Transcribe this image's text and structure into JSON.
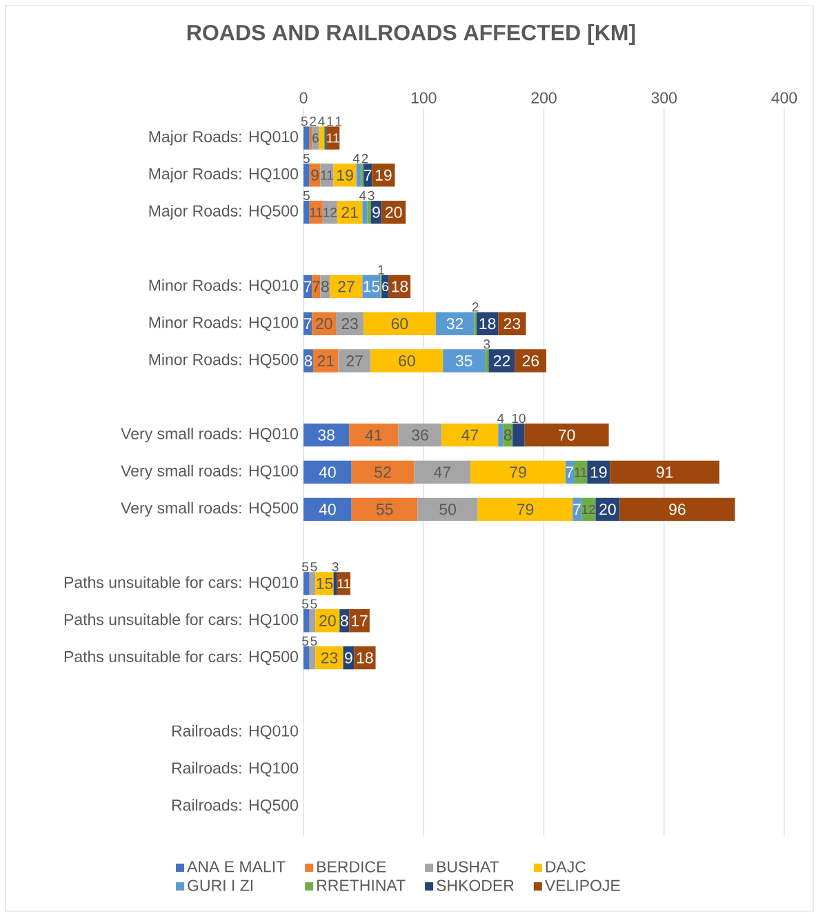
{
  "chart_data": {
    "type": "bar",
    "orientation": "horizontal",
    "stacked": true,
    "title": "ROADS AND RAILROADS AFFECTED [KM]",
    "categories": [
      "Major Roads: HQ010",
      "Major Roads: HQ100",
      "Major Roads: HQ500",
      null,
      "Minor Roads: HQ010",
      "Minor Roads: HQ100",
      "Minor Roads: HQ500",
      null,
      "Very small roads: HQ010",
      "Very small roads: HQ100",
      "Very small roads: HQ500",
      null,
      "Paths unsuitable for cars: HQ010",
      "Paths unsuitable for cars: HQ100",
      "Paths unsuitable for cars: HQ500",
      null,
      "Railroads: HQ010",
      "Railroads: HQ100",
      "Railroads: HQ500"
    ],
    "series": [
      {
        "name": "ANA E MALIT",
        "color": "#4472c4",
        "values": [
          5,
          5,
          5,
          null,
          7,
          7,
          8,
          null,
          38,
          40,
          40,
          null,
          5,
          5,
          5,
          null,
          null,
          null,
          null
        ]
      },
      {
        "name": "BERDICE",
        "color": "#ed7d31",
        "values": [
          2,
          9,
          11,
          null,
          7,
          20,
          21,
          null,
          41,
          52,
          55,
          null,
          null,
          null,
          null,
          null,
          null,
          null,
          null
        ]
      },
      {
        "name": "BUSHAT",
        "color": "#a5a5a5",
        "values": [
          6,
          11,
          12,
          null,
          8,
          23,
          27,
          null,
          36,
          47,
          50,
          null,
          5,
          5,
          5,
          null,
          null,
          null,
          null
        ]
      },
      {
        "name": "DAJC",
        "color": "#ffc000",
        "values": [
          4,
          19,
          21,
          null,
          27,
          60,
          60,
          null,
          47,
          79,
          79,
          null,
          15,
          20,
          23,
          null,
          null,
          null,
          null
        ]
      },
      {
        "name": "GURI I ZI",
        "color": "#5b9bd5",
        "values": [
          null,
          4,
          4,
          null,
          15,
          32,
          35,
          null,
          4,
          7,
          7,
          null,
          null,
          null,
          null,
          null,
          null,
          null,
          null
        ]
      },
      {
        "name": "RRETHINAT",
        "color": "#70ad47",
        "values": [
          1,
          2,
          3,
          null,
          1,
          2,
          3,
          null,
          8,
          11,
          12,
          null,
          null,
          null,
          null,
          null,
          null,
          null,
          null
        ]
      },
      {
        "name": "SHKODER",
        "color": "#264478",
        "values": [
          1,
          7,
          9,
          null,
          6,
          18,
          22,
          null,
          10,
          19,
          20,
          null,
          3,
          8,
          9,
          null,
          null,
          null,
          null
        ]
      },
      {
        "name": "VELIPOJE",
        "color": "#9e480e",
        "values": [
          11,
          19,
          20,
          null,
          18,
          23,
          26,
          null,
          70,
          91,
          96,
          null,
          11,
          17,
          18,
          null,
          null,
          null,
          null
        ]
      }
    ],
    "xlim": [
      0,
      400
    ],
    "xticks": [
      0,
      100,
      200,
      300,
      400
    ],
    "grid": "x",
    "legend": "bottom",
    "data_labels": true
  }
}
